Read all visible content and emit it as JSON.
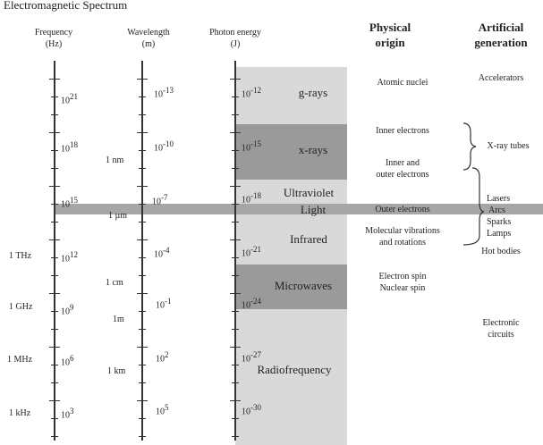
{
  "title": "Electromagnetic Spectrum",
  "headers": {
    "frequency": [
      "Frequency",
      "(Hz)"
    ],
    "wavelength": [
      "Wavelength",
      "(m)"
    ],
    "energy": [
      "Photon energy",
      "(J)"
    ],
    "physical": [
      "Physical",
      "origin"
    ],
    "artificial": [
      "Artificial",
      "generation"
    ]
  },
  "frequency_labels": [
    {
      "base": "10",
      "exp": "21"
    },
    {
      "base": "10",
      "exp": "18"
    },
    {
      "base": "10",
      "exp": "15"
    },
    {
      "base": "10",
      "exp": "12"
    },
    {
      "base": "10",
      "exp": "9"
    },
    {
      "base": "10",
      "exp": "6"
    },
    {
      "base": "10",
      "exp": "3"
    }
  ],
  "frequency_named": [
    "1 THz",
    "1 GHz",
    "1 MHz",
    "1 kHz"
  ],
  "wavelength_labels": [
    {
      "base": "10",
      "exp": "-13"
    },
    {
      "base": "10",
      "exp": "-10"
    },
    {
      "base": "10",
      "exp": "-7"
    },
    {
      "base": "10",
      "exp": "-4"
    },
    {
      "base": "10",
      "exp": "-1"
    },
    {
      "base": "10",
      "exp": "2"
    },
    {
      "base": "10",
      "exp": "5"
    }
  ],
  "wavelength_named": [
    "1 nm",
    "1 µm",
    "1 cm",
    "1m",
    "1 km"
  ],
  "energy_labels": [
    {
      "base": "10",
      "exp": "-12"
    },
    {
      "base": "10",
      "exp": "-15"
    },
    {
      "base": "10",
      "exp": "-18"
    },
    {
      "base": "10",
      "exp": "-21"
    },
    {
      "base": "10",
      "exp": "-24"
    },
    {
      "base": "10",
      "exp": "-27"
    },
    {
      "base": "10",
      "exp": "-30"
    }
  ],
  "bands": [
    "g-rays",
    "x-rays",
    "Ultraviolet",
    "Light",
    "Infrared",
    "Microwaves",
    "Radiofrequency"
  ],
  "physical_origin": {
    "atomic": "Atomic nuclei",
    "inner": "Inner electrons",
    "inner_outer": [
      "Inner and",
      "outer electrons"
    ],
    "outer": "Outer electrons",
    "molecular": [
      "Molecular vibrations",
      "and rotations"
    ],
    "spin": [
      "Electron spin",
      "Nuclear spin"
    ]
  },
  "artificial_generation": {
    "accelerators": "Accelerators",
    "xray_tubes": "X-ray tubes",
    "lasers": "Lasers",
    "arcs": "Arcs",
    "sparks": "Sparks",
    "lamps": "Lamps",
    "hot_bodies": "Hot bodies",
    "electronic": [
      "Electronic",
      "circuits"
    ]
  },
  "colors": {
    "light_band": "#d9d9d9",
    "dark_band": "#9a9a9a",
    "light_strip": "#a6a6a6",
    "axis": "#333333"
  }
}
